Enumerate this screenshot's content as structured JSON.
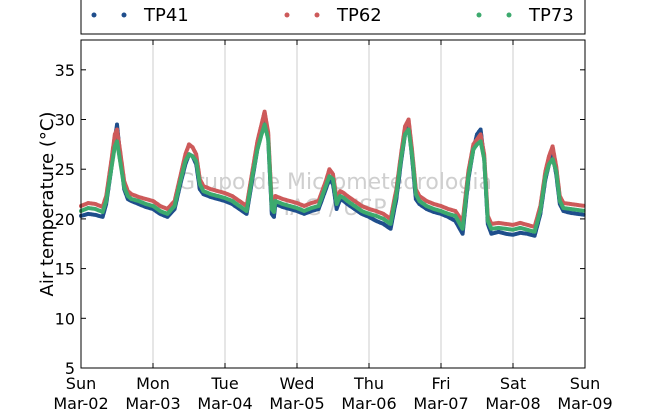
{
  "chart_data": {
    "type": "scatter",
    "ylabel": "Air temperature (°C)",
    "ylim": [
      5,
      38
    ],
    "yticks": [
      5,
      10,
      15,
      20,
      25,
      30,
      35
    ],
    "xlim": [
      "2015-03-02",
      "2015-03-09"
    ],
    "xticks": [
      {
        "day": "Sun",
        "date": "Mar-02"
      },
      {
        "day": "Mon",
        "date": "Mar-03"
      },
      {
        "day": "Tue",
        "date": "Mar-04"
      },
      {
        "day": "Wed",
        "date": "Mar-05"
      },
      {
        "day": "Thu",
        "date": "Mar-06"
      },
      {
        "day": "Fri",
        "date": "Mar-07"
      },
      {
        "day": "Sat",
        "date": "Mar-08"
      },
      {
        "day": "Sun",
        "date": "Mar-09"
      }
    ],
    "grid": "vertical",
    "legend_position": "top",
    "watermark": [
      "Grupo de Micrometeorologia",
      "IAG / USP"
    ],
    "series": [
      {
        "name": "TP41",
        "color": "#1f4e8c",
        "x_days": [
          0,
          0.1,
          0.2,
          0.3,
          0.35,
          0.42,
          0.47,
          0.5,
          0.55,
          0.6,
          0.65,
          0.7,
          0.8,
          0.9,
          1.0,
          1.1,
          1.2,
          1.3,
          1.38,
          1.45,
          1.5,
          1.55,
          1.6,
          1.65,
          1.7,
          1.8,
          1.9,
          2.0,
          2.1,
          2.2,
          2.3,
          2.38,
          2.45,
          2.5,
          2.55,
          2.6,
          2.65,
          2.68,
          2.7,
          2.8,
          2.9,
          3.0,
          3.1,
          3.2,
          3.3,
          3.4,
          3.45,
          3.5,
          3.55,
          3.6,
          3.65,
          3.7,
          3.8,
          3.9,
          4.0,
          4.1,
          4.2,
          4.3,
          4.38,
          4.45,
          4.5,
          4.55,
          4.6,
          4.65,
          4.7,
          4.8,
          4.9,
          5.0,
          5.1,
          5.2,
          5.3,
          5.38,
          5.45,
          5.5,
          5.55,
          5.6,
          5.65,
          5.7,
          5.8,
          5.9,
          6.0,
          6.1,
          6.2,
          6.3,
          6.38,
          6.45,
          6.5,
          6.55,
          6.6,
          6.65,
          6.7,
          6.8,
          6.9,
          7.0
        ],
        "y": [
          20.3,
          20.5,
          20.4,
          20.2,
          21.5,
          25.0,
          28.0,
          29.5,
          26.0,
          23.0,
          22.0,
          21.8,
          21.5,
          21.2,
          21.0,
          20.5,
          20.2,
          21.0,
          23.5,
          25.5,
          26.5,
          26.3,
          25.5,
          23.0,
          22.5,
          22.2,
          22.0,
          21.8,
          21.5,
          21.0,
          20.5,
          24.0,
          27.0,
          28.5,
          30.5,
          28.0,
          20.5,
          20.2,
          21.5,
          21.2,
          21.0,
          20.8,
          20.5,
          20.8,
          21.0,
          23.0,
          24.0,
          23.5,
          21.0,
          22.0,
          21.8,
          21.5,
          21.0,
          20.5,
          20.2,
          19.8,
          19.5,
          19.0,
          22.0,
          26.0,
          28.5,
          29.5,
          26.0,
          22.0,
          21.5,
          21.0,
          20.7,
          20.5,
          20.2,
          19.8,
          18.5,
          24.0,
          27.0,
          28.5,
          29.0,
          26.0,
          19.5,
          18.5,
          18.7,
          18.5,
          18.4,
          18.6,
          18.5,
          18.3,
          20.5,
          24.0,
          25.5,
          26.5,
          24.5,
          21.5,
          20.8,
          20.6,
          20.5,
          20.4
        ]
      },
      {
        "name": "TP62",
        "color": "#cd5a5a",
        "x_days": [
          0,
          0.1,
          0.2,
          0.3,
          0.35,
          0.42,
          0.47,
          0.5,
          0.55,
          0.6,
          0.65,
          0.7,
          0.8,
          0.9,
          1.0,
          1.1,
          1.2,
          1.3,
          1.38,
          1.45,
          1.5,
          1.55,
          1.6,
          1.65,
          1.7,
          1.8,
          1.9,
          2.0,
          2.1,
          2.2,
          2.3,
          2.38,
          2.45,
          2.5,
          2.55,
          2.6,
          2.65,
          2.68,
          2.7,
          2.8,
          2.9,
          3.0,
          3.1,
          3.2,
          3.3,
          3.4,
          3.45,
          3.5,
          3.55,
          3.6,
          3.65,
          3.7,
          3.8,
          3.9,
          4.0,
          4.1,
          4.2,
          4.3,
          4.38,
          4.45,
          4.5,
          4.55,
          4.6,
          4.65,
          4.7,
          4.8,
          4.9,
          5.0,
          5.1,
          5.2,
          5.3,
          5.38,
          5.45,
          5.5,
          5.55,
          5.6,
          5.65,
          5.7,
          5.8,
          5.9,
          6.0,
          6.1,
          6.2,
          6.3,
          6.38,
          6.45,
          6.5,
          6.55,
          6.6,
          6.65,
          6.7,
          6.8,
          6.9,
          7.0
        ],
        "y": [
          21.3,
          21.6,
          21.5,
          21.2,
          22.3,
          25.8,
          28.5,
          29.0,
          26.5,
          23.8,
          22.8,
          22.5,
          22.2,
          22.0,
          21.8,
          21.3,
          21.0,
          21.8,
          24.3,
          26.5,
          27.5,
          27.2,
          26.5,
          24.0,
          23.3,
          23.0,
          22.8,
          22.6,
          22.3,
          21.8,
          21.3,
          24.8,
          27.8,
          29.3,
          30.8,
          28.7,
          21.5,
          21.2,
          22.3,
          22.0,
          21.8,
          21.6,
          21.3,
          21.6,
          21.8,
          23.8,
          25.0,
          24.5,
          22.0,
          22.8,
          22.6,
          22.3,
          21.8,
          21.3,
          21.0,
          20.8,
          20.5,
          20.0,
          23.0,
          26.8,
          29.3,
          30.0,
          26.8,
          23.0,
          22.3,
          21.8,
          21.5,
          21.3,
          21.0,
          20.8,
          19.7,
          24.8,
          27.5,
          28.0,
          28.5,
          26.5,
          20.3,
          19.5,
          19.6,
          19.5,
          19.4,
          19.6,
          19.4,
          19.2,
          21.3,
          24.8,
          26.3,
          27.3,
          25.3,
          22.3,
          21.6,
          21.5,
          21.4,
          21.3
        ]
      },
      {
        "name": "TP73",
        "color": "#3daa6e",
        "x_days": [
          0,
          0.1,
          0.2,
          0.3,
          0.35,
          0.42,
          0.47,
          0.5,
          0.55,
          0.6,
          0.65,
          0.7,
          0.8,
          0.9,
          1.0,
          1.1,
          1.2,
          1.3,
          1.38,
          1.45,
          1.5,
          1.55,
          1.6,
          1.65,
          1.7,
          1.8,
          1.9,
          2.0,
          2.1,
          2.2,
          2.3,
          2.38,
          2.45,
          2.5,
          2.55,
          2.6,
          2.65,
          2.68,
          2.7,
          2.8,
          2.9,
          3.0,
          3.1,
          3.2,
          3.3,
          3.4,
          3.45,
          3.5,
          3.55,
          3.6,
          3.65,
          3.7,
          3.8,
          3.9,
          4.0,
          4.1,
          4.2,
          4.3,
          4.38,
          4.45,
          4.5,
          4.55,
          4.6,
          4.65,
          4.7,
          4.8,
          4.9,
          5.0,
          5.1,
          5.2,
          5.3,
          5.38,
          5.45,
          5.5,
          5.55,
          5.6,
          5.65,
          5.7,
          5.8,
          5.9,
          6.0,
          6.1,
          6.2,
          6.3,
          6.38,
          6.45,
          6.5,
          6.55,
          6.6,
          6.65,
          6.7,
          6.8,
          6.9,
          7.0
        ],
        "y": [
          20.8,
          21.1,
          21.0,
          20.7,
          21.8,
          25.0,
          27.3,
          27.8,
          25.5,
          23.2,
          22.3,
          22.0,
          21.8,
          21.5,
          21.3,
          20.8,
          20.5,
          21.3,
          23.8,
          25.8,
          26.5,
          26.3,
          25.8,
          23.5,
          22.8,
          22.5,
          22.3,
          22.1,
          21.8,
          21.3,
          20.8,
          24.3,
          27.0,
          28.3,
          29.5,
          28.0,
          21.0,
          20.7,
          21.8,
          21.5,
          21.3,
          21.1,
          20.8,
          21.1,
          21.3,
          23.3,
          24.3,
          24.0,
          21.5,
          22.3,
          22.1,
          21.8,
          21.3,
          20.8,
          20.5,
          20.3,
          20.0,
          19.5,
          22.5,
          26.3,
          28.5,
          29.0,
          26.3,
          22.5,
          21.8,
          21.3,
          21.0,
          20.8,
          20.5,
          20.3,
          19.0,
          24.3,
          27.0,
          27.5,
          27.8,
          26.0,
          19.8,
          19.0,
          19.1,
          19.0,
          18.9,
          19.1,
          18.9,
          18.7,
          20.8,
          24.3,
          25.5,
          26.0,
          24.8,
          21.8,
          21.1,
          21.0,
          20.9,
          20.8
        ]
      }
    ]
  }
}
